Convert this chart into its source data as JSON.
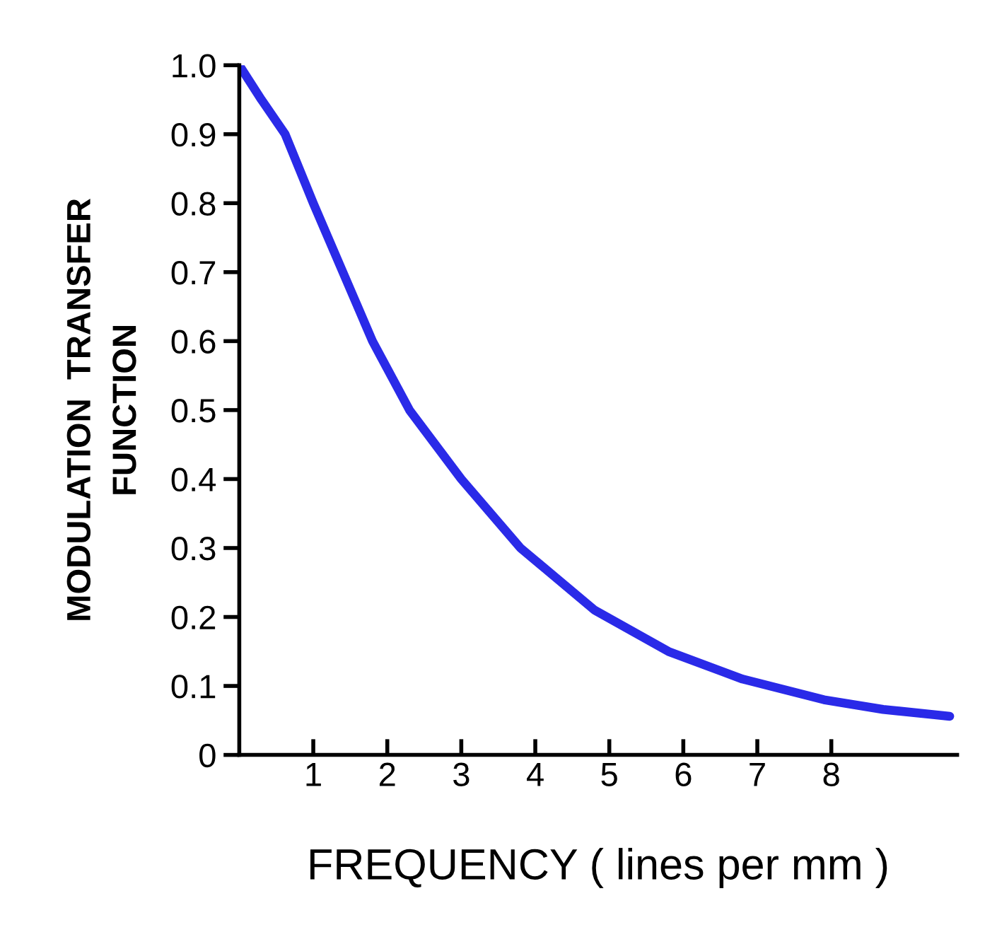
{
  "chart_data": {
    "type": "line",
    "xlabel": "FREQUENCY ( lines per mm )",
    "ylabel": "MODULATION  TRANSFER\nFUNCTION",
    "x": [
      0,
      0.3,
      0.62,
      1.0,
      1.4,
      1.8,
      2.3,
      3.0,
      3.8,
      4.8,
      5.8,
      6.8,
      7.9,
      8.7,
      9.6
    ],
    "series": [
      {
        "color": "#2a2ae8",
        "values": [
          1.0,
          0.95,
          0.9,
          0.8,
          0.7,
          0.6,
          0.5,
          0.4,
          0.3,
          0.21,
          0.15,
          0.11,
          0.08,
          0.066,
          0.056
        ]
      }
    ],
    "xlim": [
      0,
      9.7
    ],
    "ylim": [
      0,
      1.0
    ],
    "xticks": [
      1,
      2,
      3,
      4,
      5,
      6,
      7,
      8
    ],
    "yticks": [
      0,
      0.1,
      0.2,
      0.3,
      0.4,
      0.5,
      0.6,
      0.7,
      0.8,
      0.9,
      {
        "value": 1.0,
        "label": "1.0"
      }
    ],
    "grid": false,
    "marker": "none",
    "line_style": "solid"
  }
}
